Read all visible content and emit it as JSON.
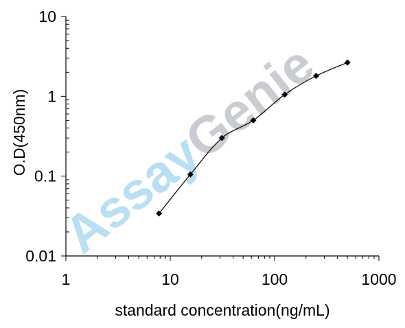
{
  "chart_data": {
    "type": "line",
    "xlabel": "standard concentration(ng/mL)",
    "ylabel": "O.D(450nm)",
    "x_scale": "log",
    "y_scale": "log",
    "xlim": [
      1,
      1000
    ],
    "ylim": [
      0.01,
      10
    ],
    "x_ticks": [
      {
        "value": 1,
        "label": "1"
      },
      {
        "value": 10,
        "label": "10"
      },
      {
        "value": 100,
        "label": "100"
      },
      {
        "value": 1000,
        "label": "1000"
      }
    ],
    "y_ticks": [
      {
        "value": 0.01,
        "label": "0.01"
      },
      {
        "value": 0.1,
        "label": "0.1"
      },
      {
        "value": 1,
        "label": "1"
      },
      {
        "value": 10,
        "label": "10"
      }
    ],
    "grid": false,
    "legend": "none",
    "series": [
      {
        "marker": "diamond",
        "color": "#000000",
        "x": [
          7.8,
          15.6,
          31.25,
          62.5,
          125,
          250,
          500
        ],
        "y": [
          0.034,
          0.105,
          0.3,
          0.5,
          1.05,
          1.8,
          2.65
        ]
      }
    ]
  },
  "watermark": {
    "part1": "Assay",
    "part2": "Genie",
    "color1": "#b8dff2",
    "color2": "#c9ccd1"
  }
}
